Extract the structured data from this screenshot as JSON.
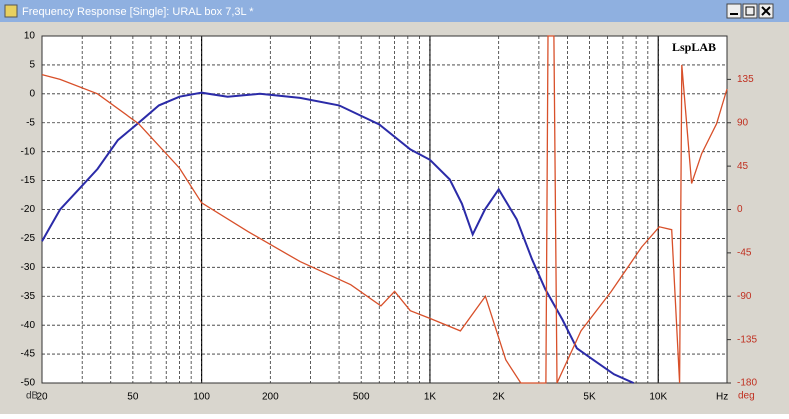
{
  "window": {
    "title": "Frequency Response [Single]: URAL box 7,3L *"
  },
  "chart_data": {
    "type": "line",
    "log_x": true,
    "logo": "LspLAB",
    "xlabel": "Hz",
    "ylabel": "dB",
    "y2label": "deg",
    "xlim": [
      20,
      20000
    ],
    "xticks": [
      20,
      50,
      100,
      200,
      500,
      {
        "value": 1000,
        "label": "1K"
      },
      {
        "value": 2000,
        "label": "2K"
      },
      {
        "value": 5000,
        "label": "5K"
      },
      {
        "value": 10000,
        "label": "10K"
      }
    ],
    "xgrid_minor": [
      30,
      40,
      60,
      70,
      80,
      90,
      300,
      400,
      600,
      700,
      800,
      900,
      3000,
      4000,
      6000,
      7000,
      8000,
      9000
    ],
    "xgrid_major": [
      100,
      1000,
      10000
    ],
    "ylim": [
      -50,
      10
    ],
    "yticks": [
      10,
      5,
      0,
      -5,
      -10,
      -15,
      -20,
      -25,
      -30,
      -35,
      -40,
      -45,
      -50
    ],
    "y2lim": [
      -180,
      180
    ],
    "y2ticks": [
      135,
      90,
      45,
      0,
      -45,
      -90,
      -135,
      -180
    ],
    "grid": true,
    "series": [
      {
        "color": "#2b2ba8",
        "axis": "y",
        "x": [
          20,
          24,
          29,
          35,
          43,
          53,
          65,
          80,
          100,
          130,
          180,
          270,
          400,
          600,
          820,
          1000,
          1220,
          1380,
          1540,
          1740,
          2000,
          2400,
          2800,
          3200,
          3800,
          4400,
          5200,
          6400,
          7800
        ],
        "values": [
          -25.5,
          -20,
          -16.5,
          -13,
          -8,
          -5,
          -2,
          -0.5,
          0.2,
          -0.5,
          0,
          -0.7,
          -2,
          -5.3,
          -9.6,
          -11.4,
          -14.8,
          -19,
          -24.3,
          -20,
          -16.5,
          -21.7,
          -28.6,
          -33.8,
          -39,
          -44,
          -46,
          -48.5,
          -50
        ]
      },
      {
        "color": "#d8502a",
        "axis": "y2",
        "x": [
          20,
          24,
          35,
          53,
          80,
          100,
          160,
          270,
          450,
          610,
          700,
          820,
          1000,
          1360,
          1750,
          2150,
          2500,
          3220,
          3290,
          3490,
          3600,
          4590,
          6230,
          8450,
          10100,
          11450,
          12400,
          12680,
          14000,
          15500,
          18000,
          20000
        ],
        "values": [
          140,
          135,
          120,
          89,
          43,
          7,
          -23,
          -54,
          -78,
          -100,
          -85,
          -105,
          -113,
          -126,
          -90,
          -156,
          -180,
          -180,
          180,
          180,
          -180,
          -126,
          -85,
          -39,
          -18,
          -21,
          -180,
          150,
          27,
          58,
          89,
          125
        ]
      }
    ]
  }
}
